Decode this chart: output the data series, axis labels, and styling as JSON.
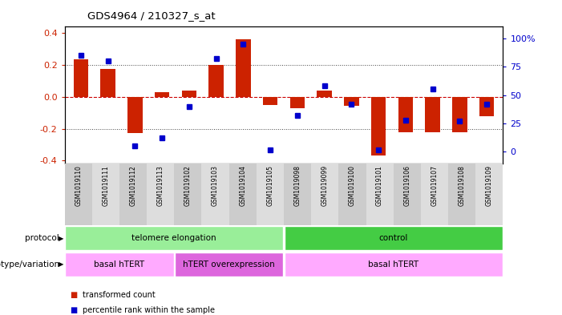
{
  "title": "GDS4964 / 210327_s_at",
  "samples": [
    "GSM1019110",
    "GSM1019111",
    "GSM1019112",
    "GSM1019113",
    "GSM1019102",
    "GSM1019103",
    "GSM1019104",
    "GSM1019105",
    "GSM1019098",
    "GSM1019099",
    "GSM1019100",
    "GSM1019101",
    "GSM1019106",
    "GSM1019107",
    "GSM1019108",
    "GSM1019109"
  ],
  "bar_values": [
    0.235,
    0.175,
    -0.225,
    0.03,
    0.04,
    0.2,
    0.36,
    -0.05,
    -0.07,
    0.04,
    -0.055,
    -0.37,
    -0.22,
    -0.22,
    -0.22,
    -0.12
  ],
  "dot_values": [
    85,
    80,
    5,
    12,
    40,
    82,
    95,
    2,
    32,
    58,
    42,
    2,
    28,
    55,
    27,
    42
  ],
  "ylim_left": [
    -0.42,
    0.44
  ],
  "ylim_right": [
    -10.5,
    110
  ],
  "yticks_left": [
    -0.4,
    -0.2,
    0.0,
    0.2,
    0.4
  ],
  "yticks_right": [
    0,
    25,
    50,
    75,
    100
  ],
  "bar_color": "#cc2200",
  "dot_color": "#0000cc",
  "zero_line_color": "#cc0000",
  "dotted_line_color": "#444444",
  "protocol_labels": [
    {
      "text": "telomere elongation",
      "start": 0,
      "end": 7,
      "color": "#99ee99"
    },
    {
      "text": "control",
      "start": 8,
      "end": 15,
      "color": "#44cc44"
    }
  ],
  "genotype_labels": [
    {
      "text": "basal hTERT",
      "start": 0,
      "end": 3,
      "color": "#ffaaff"
    },
    {
      "text": "hTERT overexpression",
      "start": 4,
      "end": 7,
      "color": "#dd66dd"
    },
    {
      "text": "basal hTERT",
      "start": 8,
      "end": 15,
      "color": "#ffaaff"
    }
  ],
  "legend_items": [
    {
      "label": "transformed count",
      "color": "#cc2200"
    },
    {
      "label": "percentile rank within the sample",
      "color": "#0000cc"
    }
  ],
  "protocol_row_label": "protocol",
  "genotype_row_label": "genotype/variation",
  "background_color": "#ffffff"
}
